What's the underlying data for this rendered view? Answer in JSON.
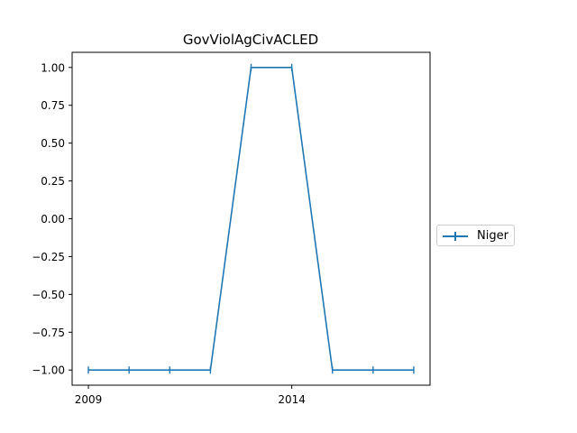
{
  "chart_data": {
    "type": "line",
    "title": "GovViolAgCivACLED",
    "xlabel": "",
    "ylabel": "",
    "x": [
      2009,
      2010,
      2011,
      2012,
      2013,
      2014,
      2015,
      2016,
      2017
    ],
    "xticks": [
      2009,
      2014
    ],
    "xlim": [
      2008.6,
      2017.4
    ],
    "ylim": [
      -1.1,
      1.1
    ],
    "yticks": [
      "−1.00",
      "−0.75",
      "−0.50",
      "−0.25",
      "0.00",
      "0.25",
      "0.50",
      "0.75",
      "1.00"
    ],
    "ytick_values": [
      -1.0,
      -0.75,
      -0.5,
      -0.25,
      0.0,
      0.25,
      0.5,
      0.75,
      1.0
    ],
    "series": [
      {
        "name": "Niger",
        "color": "#1f77b4",
        "marker": "|",
        "values": [
          -1,
          -1,
          -1,
          -1,
          1,
          1,
          -1,
          -1,
          -1
        ]
      }
    ],
    "grid": false,
    "legend_position": "outside-right"
  }
}
